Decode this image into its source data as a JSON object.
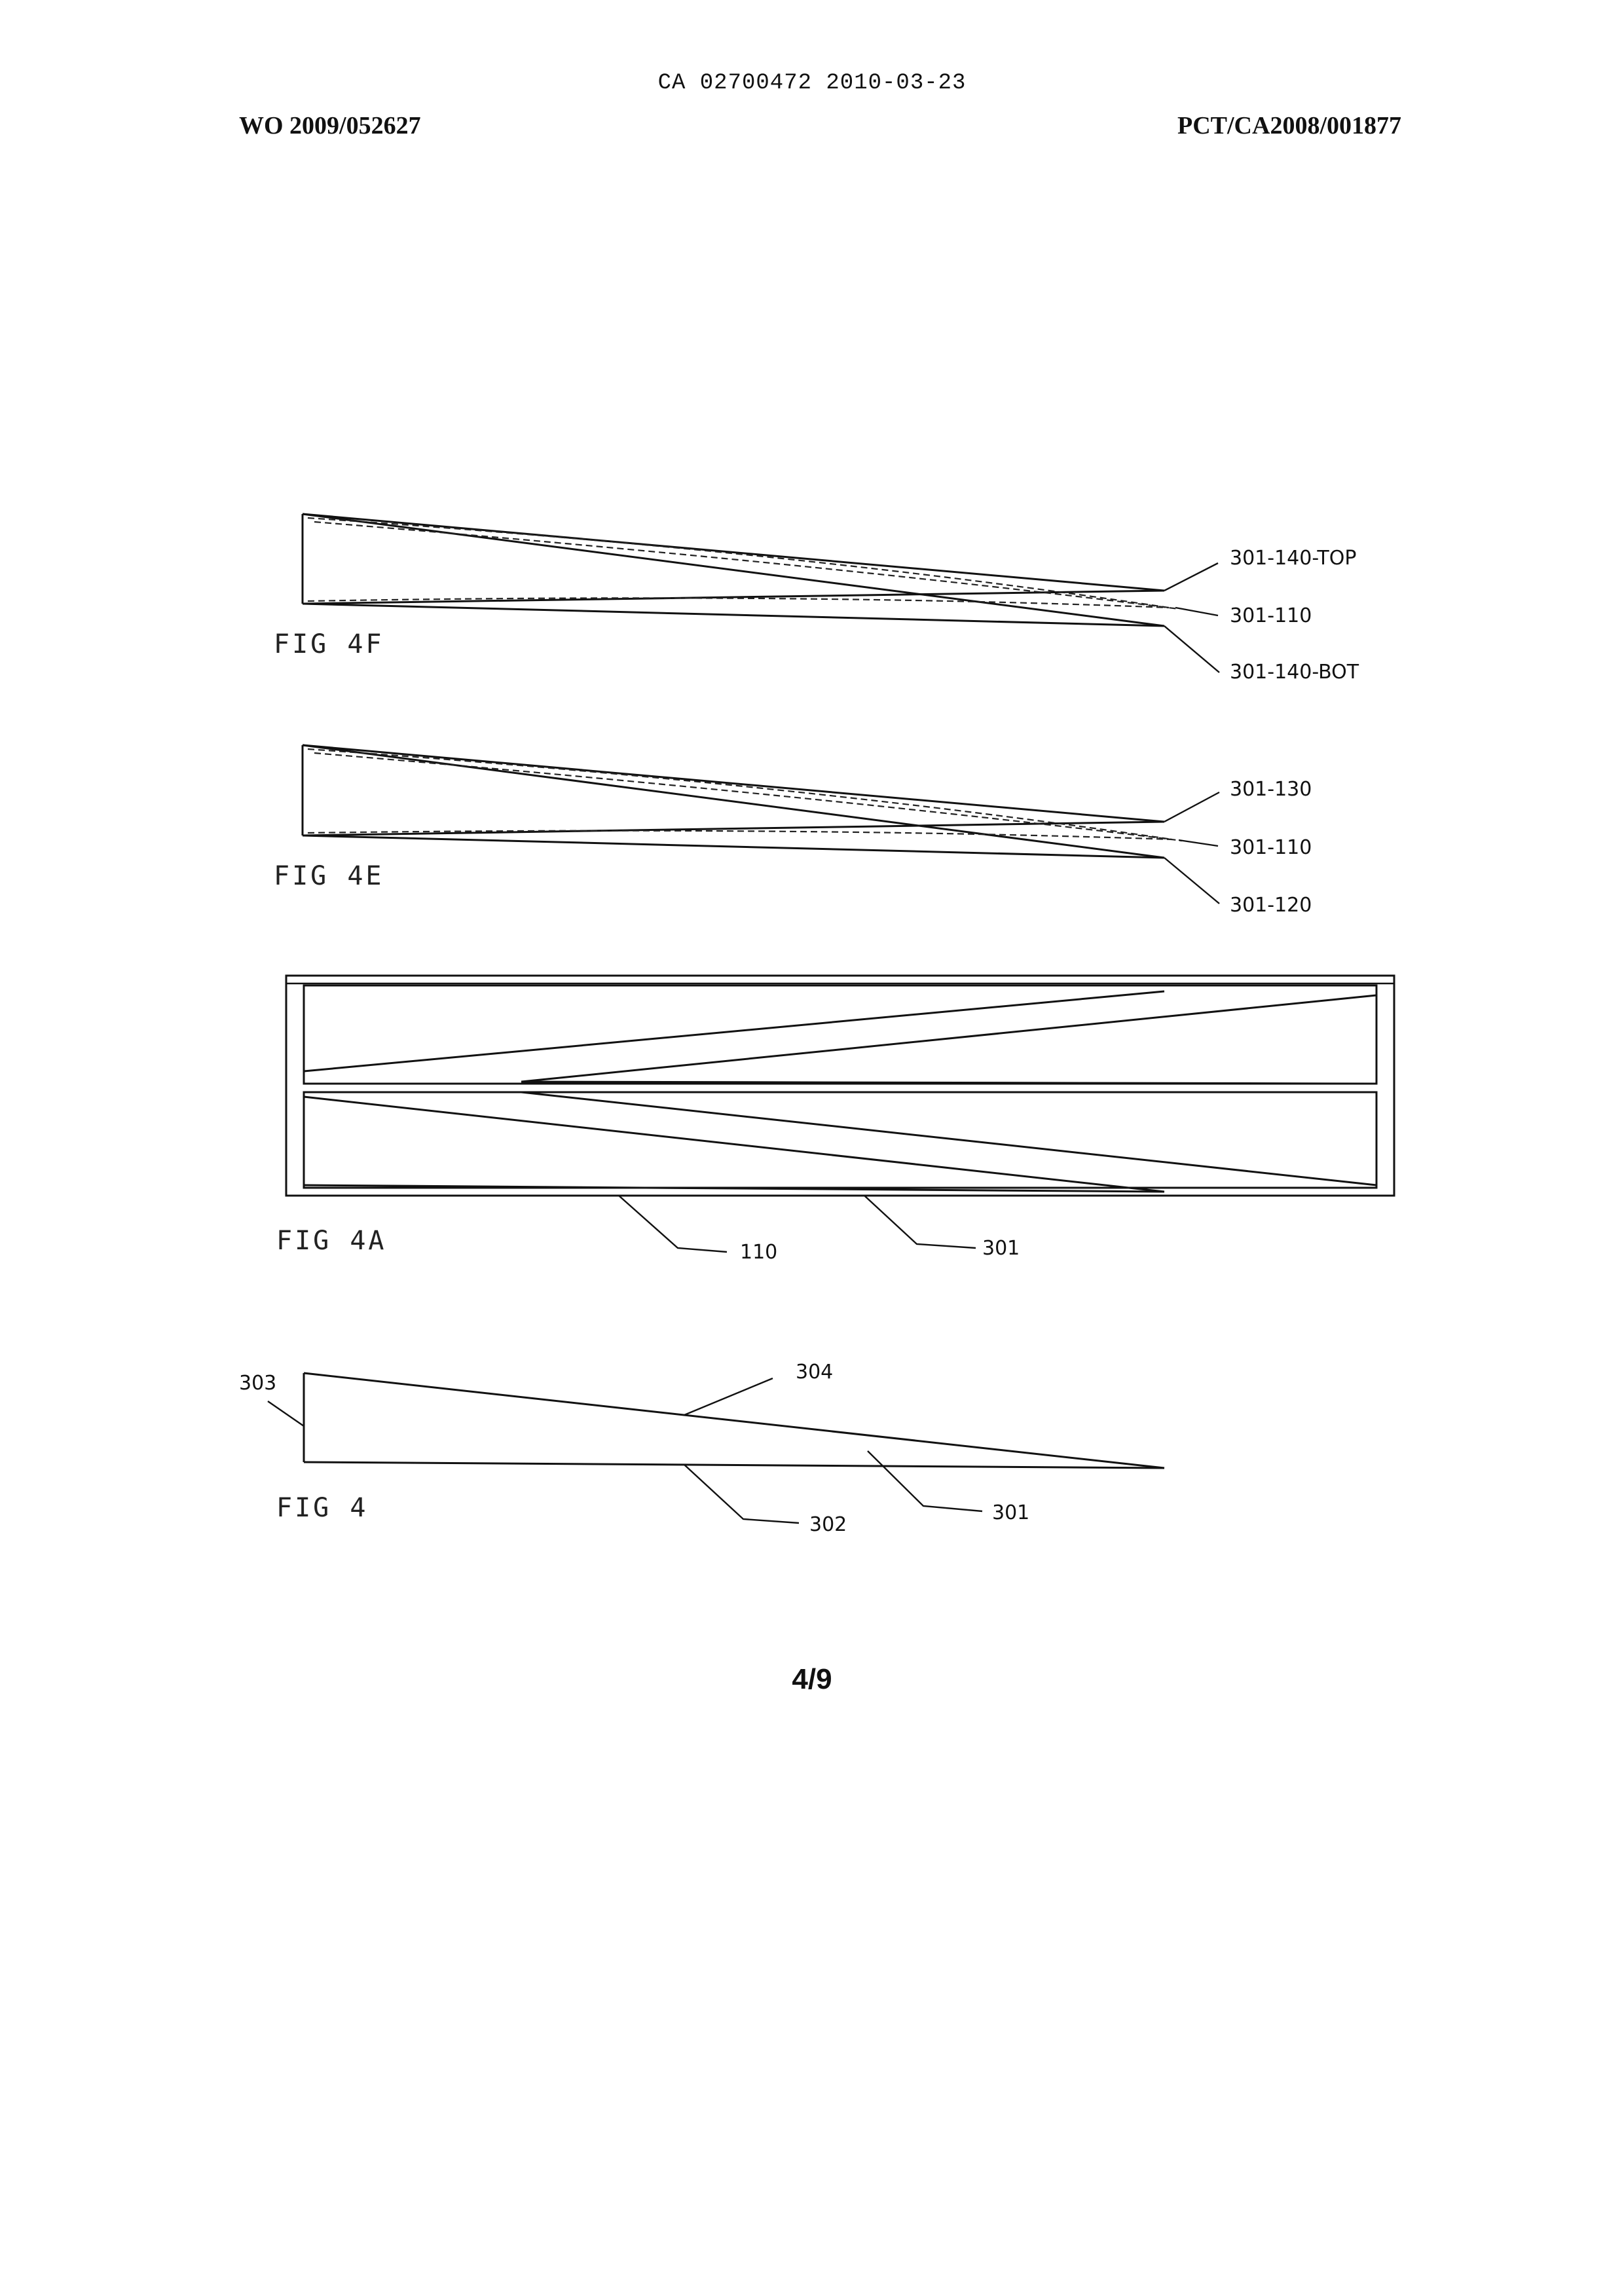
{
  "header": {
    "center": "CA 02700472 2010-03-23",
    "left": "WO 2009/052627",
    "right": "PCT/CA2008/001877"
  },
  "figures": {
    "fig4f": {
      "label": "FIG 4F",
      "refs": [
        "301-140-TOP",
        "301-110",
        "301-140-BOT"
      ]
    },
    "fig4e": {
      "label": "FIG 4E",
      "refs": [
        "301-130",
        "301-110",
        "301-120"
      ]
    },
    "fig4a": {
      "label": "FIG 4A",
      "refs": [
        "110",
        "301"
      ]
    },
    "fig4": {
      "label": "FIG 4",
      "refs": [
        "303",
        "304",
        "302",
        "301"
      ]
    }
  },
  "footer": {
    "page": "4/9"
  }
}
